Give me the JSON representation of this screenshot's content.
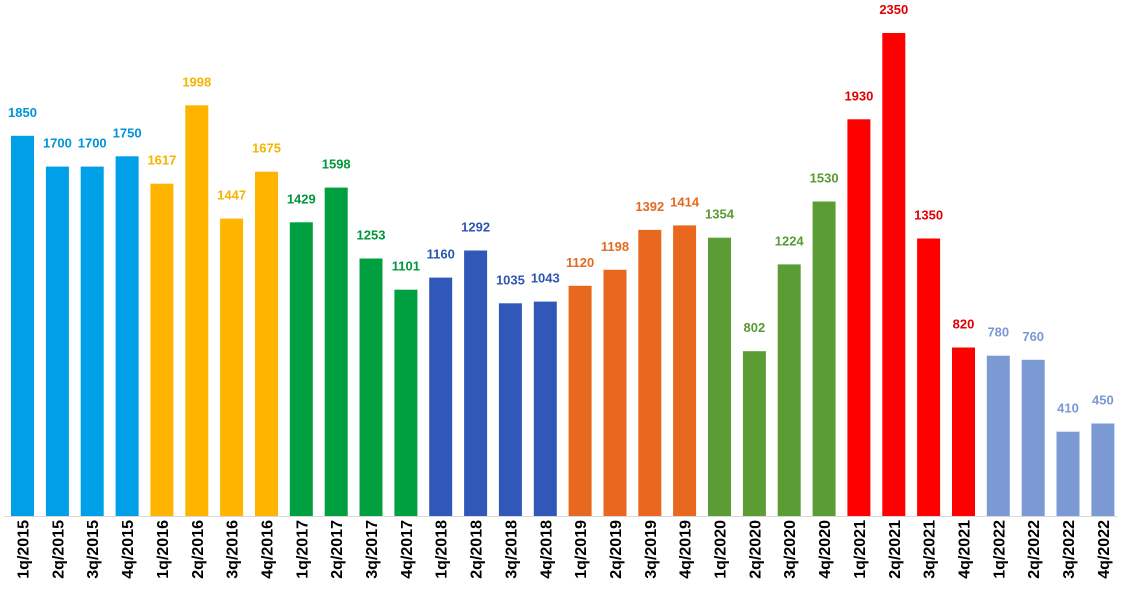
{
  "chart_data": {
    "type": "bar",
    "title": "",
    "xlabel": "",
    "ylabel": "",
    "ylim": [
      0,
      2400
    ],
    "grid": false,
    "legend": "none",
    "categories": [
      "1q/2015",
      "2q/2015",
      "3q/2015",
      "4q/2015",
      "1q/2016",
      "2q/2016",
      "3q/2016",
      "4q/2016",
      "1q/2017",
      "2q/2017",
      "3q/2017",
      "4q/2017",
      "1q/2018",
      "2q/2018",
      "3q/2018",
      "4q/2018",
      "1q/2019",
      "2q/2019",
      "3q/2019",
      "4q/2019",
      "1q/2020",
      "2q/2020",
      "3q/2020",
      "4q/2020",
      "1q/2021",
      "2q/2021",
      "3q/2021",
      "4q/2021",
      "1q/2022",
      "2q/2022",
      "3q/2022",
      "4q/2022"
    ],
    "values": [
      1850,
      1700,
      1700,
      1750,
      1617,
      1998,
      1447,
      1675,
      1429,
      1598,
      1253,
      1101,
      1160,
      1292,
      1035,
      1043,
      1120,
      1198,
      1392,
      1414,
      1354,
      802,
      1224,
      1530,
      1930,
      2350,
      1350,
      820,
      780,
      760,
      410,
      450
    ],
    "data_labels": [
      "1850",
      "1700",
      "1700",
      "1750",
      "1617",
      "1998",
      "1447",
      "1675",
      "1429",
      "1598",
      "1253",
      "1101",
      "1160",
      "1292",
      "1035",
      "1043",
      "1120",
      "1198",
      "1392",
      "1414",
      "1354",
      "802",
      "1224",
      "1530",
      "1930",
      "2350",
      "1350",
      "820",
      "780",
      "760",
      "410",
      "450"
    ],
    "bar_colors": [
      "#00a0e9",
      "#00a0e9",
      "#00a0e9",
      "#00a0e9",
      "#ffb400",
      "#ffb400",
      "#ffb400",
      "#ffb400",
      "#00a040",
      "#00a040",
      "#00a040",
      "#00a040",
      "#3158b8",
      "#3158b8",
      "#3158b8",
      "#3158b8",
      "#e86820",
      "#e86820",
      "#e86820",
      "#e86820",
      "#5c9c34",
      "#5c9c34",
      "#5c9c34",
      "#5c9c34",
      "#ff0000",
      "#ff0000",
      "#ff0000",
      "#ff0000",
      "#7b9ad4",
      "#7b9ad4",
      "#7b9ad4",
      "#7b9ad4"
    ],
    "label_colors": [
      "#0094d6",
      "#0094d6",
      "#0094d6",
      "#0094d6",
      "#f6b400",
      "#f6b400",
      "#f6b400",
      "#f6b400",
      "#00963c",
      "#00963c",
      "#00963c",
      "#00963c",
      "#2e55b2",
      "#2e55b2",
      "#2e55b2",
      "#2e55b2",
      "#e46a22",
      "#e46a22",
      "#e46a22",
      "#e46a22",
      "#5a9a34",
      "#5a9a34",
      "#5a9a34",
      "#5a9a34",
      "#e00000",
      "#e00000",
      "#e00000",
      "#e00000",
      "#7b98d2",
      "#7b98d2",
      "#7b98d2",
      "#7b98d2"
    ]
  }
}
